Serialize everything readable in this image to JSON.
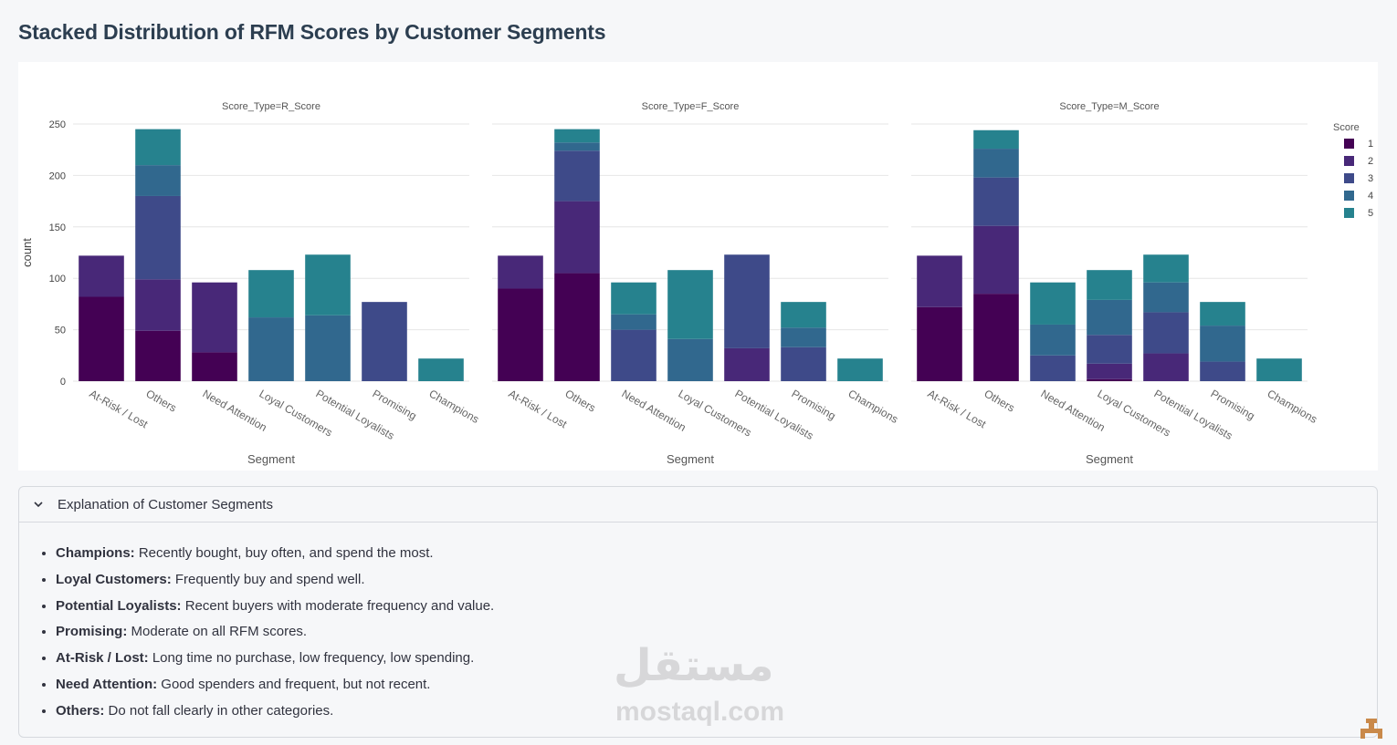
{
  "page": {
    "title": "Stacked Distribution of RFM Scores by Customer Segments"
  },
  "chart_data": {
    "type": "bar",
    "stacked": true,
    "categories": [
      "At-Risk / Lost",
      "Others",
      "Need Attention",
      "Loyal Customers",
      "Potential Loyalists",
      "Promising",
      "Champions"
    ],
    "facets": [
      {
        "title": "Score_Type=R_Score",
        "series": [
          {
            "name": "1",
            "values": [
              82,
              49,
              28,
              0,
              0,
              0,
              0
            ]
          },
          {
            "name": "2",
            "values": [
              40,
              50,
              68,
              0,
              0,
              0,
              0
            ]
          },
          {
            "name": "3",
            "values": [
              0,
              81,
              0,
              0,
              0,
              77,
              0
            ]
          },
          {
            "name": "4",
            "values": [
              0,
              30,
              0,
              62,
              64,
              0,
              0
            ]
          },
          {
            "name": "5",
            "values": [
              0,
              35,
              0,
              46,
              59,
              0,
              22
            ]
          }
        ]
      },
      {
        "title": "Score_Type=F_Score",
        "series": [
          {
            "name": "1",
            "values": [
              90,
              105,
              0,
              0,
              0,
              0,
              0
            ]
          },
          {
            "name": "2",
            "values": [
              32,
              70,
              0,
              0,
              32,
              0,
              0
            ]
          },
          {
            "name": "3",
            "values": [
              0,
              49,
              50,
              0,
              91,
              33,
              0
            ]
          },
          {
            "name": "4",
            "values": [
              0,
              8,
              15,
              41,
              0,
              19,
              0
            ]
          },
          {
            "name": "5",
            "values": [
              0,
              13,
              31,
              67,
              0,
              25,
              22
            ]
          }
        ]
      },
      {
        "title": "Score_Type=M_Score",
        "series": [
          {
            "name": "1",
            "values": [
              72,
              85,
              0,
              2,
              0,
              0,
              0
            ]
          },
          {
            "name": "2",
            "values": [
              50,
              66,
              0,
              15,
              27,
              0,
              0
            ]
          },
          {
            "name": "3",
            "values": [
              0,
              47,
              25,
              28,
              40,
              19,
              0
            ]
          },
          {
            "name": "4",
            "values": [
              0,
              28,
              30,
              34,
              29,
              35,
              0
            ]
          },
          {
            "name": "5",
            "values": [
              0,
              18,
              41,
              29,
              27,
              23,
              22
            ]
          }
        ]
      }
    ],
    "colors": [
      "#440154",
      "#482878",
      "#3e4a89",
      "#31688e",
      "#26828e"
    ],
    "xlabel": "Segment",
    "ylabel": "count",
    "ylim": [
      0,
      250
    ],
    "yticks": [
      0,
      50,
      100,
      150,
      200,
      250
    ],
    "legend": {
      "title": "Score",
      "position": "right"
    },
    "grid": true
  },
  "expander": {
    "title": "Explanation of Customer Segments",
    "icon": "chevron-down-icon",
    "items": [
      {
        "term": "Champions:",
        "text": " Recently bought, buy often, and spend the most."
      },
      {
        "term": "Loyal Customers:",
        "text": " Frequently buy and spend well."
      },
      {
        "term": "Potential Loyalists:",
        "text": " Recent buyers with moderate frequency and value."
      },
      {
        "term": "Promising:",
        "text": " Moderate on all RFM scores."
      },
      {
        "term": "At-Risk / Lost:",
        "text": " Long time no purchase, low frequency, low spending."
      },
      {
        "term": "Need Attention:",
        "text": " Good spenders and frequent, but not recent."
      },
      {
        "term": "Others:",
        "text": " Do not fall clearly in other categories."
      }
    ]
  },
  "watermark": {
    "arabic": "مستقل",
    "latin": "mostaql.com"
  }
}
